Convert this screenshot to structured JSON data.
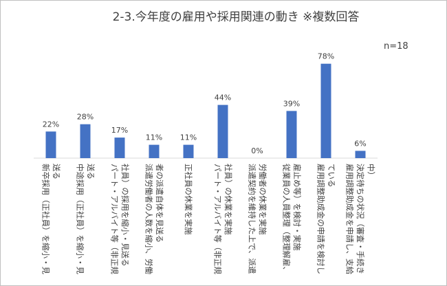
{
  "chart_data": {
    "type": "bar",
    "title": "2-3.今年度の雇用や採用関連の動き ※複数回答",
    "note": "n=18",
    "ylim": [
      0,
      100
    ],
    "grid": false,
    "legend": "none",
    "bar_color": "#4472c4",
    "categories": [
      {
        "label": "新卒採用（正社員）を縮小・見送る",
        "lines": [
          "新卒採用（正社員）を縮小・見",
          "送る"
        ]
      },
      {
        "label": "中途採用（正社員）を縮小・見送る",
        "lines": [
          "中途採用（正社員）を縮小・見",
          "送る"
        ]
      },
      {
        "label": "パート・アルバイト等（非正規社員）の採用を縮小・見送る",
        "lines": [
          "パート・アルバイト等（非正規",
          "社員）の採用を縮小・見送る"
        ]
      },
      {
        "label": "派遣労働者の人数を縮小、労働者の派遣自体を見送る",
        "lines": [
          "派遣労働者の人数を縮小、労働",
          "者の派遣自体を見送る"
        ]
      },
      {
        "label": "正社員の休業を実施",
        "lines": [
          "正社員の休業を実施"
        ]
      },
      {
        "label": "パート・アルバイト等（非正規社員）の休業を実施",
        "lines": [
          "パート・アルバイト等（非正規",
          "社員）の休業を実施"
        ]
      },
      {
        "label": "派遣契約を維持した上で、派遣労働者の休業を実施",
        "lines": [
          "派遣契約を維持した上で、派遣",
          "労働者の休業を実施"
        ]
      },
      {
        "label": "従業員の人員整理（整理解雇、雇止め等）を検討・実施",
        "lines": [
          "従業員の人員整理（整理解雇、",
          "雇止め等）を検討・実施"
        ]
      },
      {
        "label": "雇用調整助成金の申請を検討している",
        "lines": [
          "雇用調整助成金の申請を検討し",
          "ている"
        ]
      },
      {
        "label": "雇用調整助成金を申請し、支給決定待ちの状況（審査・手続き中）",
        "lines": [
          "雇用調整助成金を申請し、支給",
          "決定待ちの状況（審査・手続き",
          "中）"
        ]
      }
    ],
    "values": [
      22,
      28,
      17,
      11,
      11,
      44,
      0,
      39,
      78,
      6
    ],
    "data_labels": [
      "22%",
      "28%",
      "17%",
      "11%",
      "11%",
      "44%",
      "0%",
      "39%",
      "78%",
      "6%"
    ]
  }
}
